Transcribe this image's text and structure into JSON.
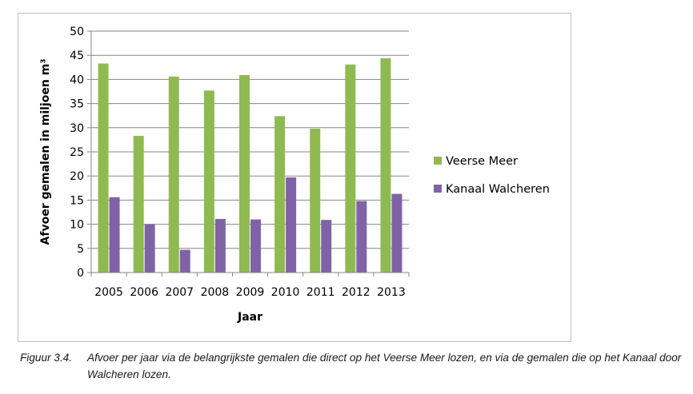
{
  "chart_data": {
    "type": "bar",
    "categories": [
      "2005",
      "2006",
      "2007",
      "2008",
      "2009",
      "2010",
      "2011",
      "2012",
      "2013"
    ],
    "series": [
      {
        "name": "Veerse Meer",
        "color": "#8fba52",
        "values": [
          43.3,
          28.3,
          40.6,
          37.7,
          40.9,
          32.4,
          29.8,
          43.1,
          44.4
        ]
      },
      {
        "name": "Kanaal Walcheren",
        "color": "#8063a6",
        "values": [
          15.6,
          10.0,
          4.7,
          11.1,
          11.0,
          19.7,
          10.9,
          14.8,
          16.3
        ]
      }
    ],
    "xlabel": "Jaar",
    "ylabel": "Afvoer gemalen in miljoen m³",
    "ylim": [
      0,
      50
    ],
    "yticks": [
      0,
      5,
      10,
      15,
      20,
      25,
      30,
      35,
      40,
      45,
      50
    ],
    "grid": true,
    "legend": "right"
  },
  "caption": {
    "label": "Figuur 3.4.",
    "text": "Afvoer per jaar via de belangrijkste gemalen die direct op het Veerse Meer lozen, en via de gemalen die op het Kanaal door Walcheren lozen."
  }
}
